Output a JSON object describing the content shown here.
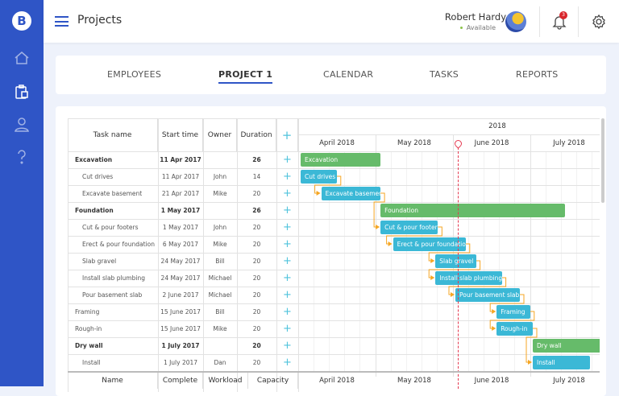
{
  "app": {
    "logo": "B",
    "title": "Projects"
  },
  "sidebar": {
    "items": [
      {
        "icon": "home-icon"
      },
      {
        "icon": "clipboard-icon",
        "active": true
      },
      {
        "icon": "user-icon"
      },
      {
        "icon": "help-icon"
      }
    ]
  },
  "user": {
    "name": "Robert Hardy",
    "status": "Available",
    "notifications": "3"
  },
  "tabs": [
    {
      "label": "EMPLOYEES"
    },
    {
      "label": "PROJECT 1",
      "active": true
    },
    {
      "label": "CALENDAR"
    },
    {
      "label": "TASKS"
    },
    {
      "label": "REPORTS"
    }
  ],
  "table": {
    "columns": [
      "Task name",
      "Start time",
      "Owner",
      "Duration"
    ],
    "footer_columns": [
      "Name",
      "Complete",
      "Workload",
      "Capacity"
    ],
    "rows": [
      {
        "name": "Excavation",
        "start": "11 Apr 2017",
        "owner": "",
        "duration": "26",
        "group": true
      },
      {
        "name": "Cut drives",
        "start": "11 Apr 2017",
        "owner": "John",
        "duration": "14"
      },
      {
        "name": "Excavate basement",
        "start": "21 Apr 2017",
        "owner": "Mike",
        "duration": "20"
      },
      {
        "name": "Foundation",
        "start": "1 May 2017",
        "owner": "",
        "duration": "26",
        "group": true
      },
      {
        "name": "Cut & pour footers",
        "start": "1 May 2017",
        "owner": "John",
        "duration": "20"
      },
      {
        "name": "Erect & pour foundation",
        "start": "6 May 2017",
        "owner": "Mike",
        "duration": "20"
      },
      {
        "name": "Slab gravel",
        "start": "24 May 2017",
        "owner": "Bill",
        "duration": "20"
      },
      {
        "name": "Install slab plumbing",
        "start": "24 May 2017",
        "owner": "Michael",
        "duration": "20"
      },
      {
        "name": "Pour basement slab",
        "start": "2 June 2017",
        "owner": "Michael",
        "duration": "20"
      },
      {
        "name": "Framing",
        "start": "15 June 2017",
        "owner": "Bill",
        "duration": "20",
        "top": true
      },
      {
        "name": "Rough-in",
        "start": "15 June 2017",
        "owner": "Mike",
        "duration": "20",
        "top": true
      },
      {
        "name": "Dry wall",
        "start": "1 July 2017",
        "owner": "",
        "duration": "20",
        "group": true
      },
      {
        "name": "Install",
        "start": "1 July 2017",
        "owner": "Dan",
        "duration": "20"
      }
    ]
  },
  "gantt": {
    "year": "2018",
    "months": [
      "April 2018",
      "May 2018",
      "June 2018",
      "July 2018"
    ],
    "today": "2018-06-02",
    "colors": {
      "group": "#66bb6a",
      "task": "#3bb8d6",
      "link": "#f5a623",
      "today": "#e53950"
    },
    "bars": [
      {
        "label": "Excavation",
        "start": "2018-04-01",
        "end": "2018-05-02",
        "group": true
      },
      {
        "label": "Cut drives",
        "start": "2018-04-01",
        "end": "2018-04-15"
      },
      {
        "label": "Excavate basement",
        "start": "2018-04-09",
        "end": "2018-05-02"
      },
      {
        "label": "Foundation",
        "start": "2018-05-02",
        "end": "2018-07-14",
        "group": true
      },
      {
        "label": "Cut & pour footers",
        "start": "2018-05-02",
        "end": "2018-05-25"
      },
      {
        "label": "Erect & pour foundation",
        "start": "2018-05-07",
        "end": "2018-06-05"
      },
      {
        "label": "Slab gravel",
        "start": "2018-05-24",
        "end": "2018-06-09"
      },
      {
        "label": "Install slab plumbing",
        "start": "2018-05-24",
        "end": "2018-06-19"
      },
      {
        "label": "Pour basement slab",
        "start": "2018-06-01",
        "end": "2018-06-26"
      },
      {
        "label": "Framing",
        "start": "2018-06-17",
        "end": "2018-06-30"
      },
      {
        "label": "Rough-in",
        "start": "2018-06-17",
        "end": "2018-07-01"
      },
      {
        "label": "Dry wall",
        "start": "2018-07-01",
        "end": "2018-07-31",
        "group": true
      },
      {
        "label": "Install",
        "start": "2018-07-01",
        "end": "2018-07-24"
      }
    ],
    "links": [
      [
        1,
        2
      ],
      [
        2,
        4
      ],
      [
        4,
        5
      ],
      [
        5,
        6
      ],
      [
        6,
        7
      ],
      [
        7,
        8
      ],
      [
        8,
        9
      ],
      [
        9,
        10
      ],
      [
        10,
        12
      ]
    ]
  }
}
